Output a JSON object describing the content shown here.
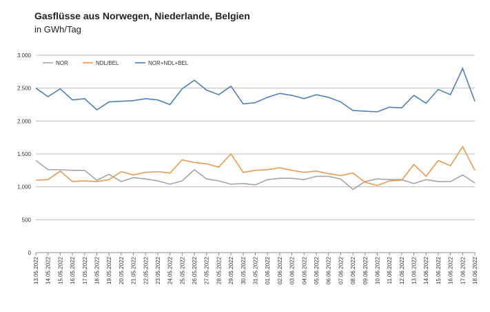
{
  "chart_data": {
    "type": "line",
    "title": "Gasflüsse aus Norwegen, Niederlande, Belgien",
    "subtitle": "in GWh/Tag",
    "categories": [
      "13.05.2022",
      "14.05.2022",
      "15.05.2022",
      "16.05.2022",
      "17.05.2022",
      "18.05.2022",
      "19.05.2022",
      "20.05.2022",
      "21.05.2022",
      "22.05.2022",
      "23.05.2022",
      "24.05.2022",
      "25.05.2022",
      "26.05.2022",
      "27.05.2022",
      "28.05.2022",
      "29.05.2022",
      "30.05.2022",
      "31.05.2022",
      "01.06.2022",
      "02.06.2022",
      "03.06.2022",
      "04.06.2022",
      "05.06.2022",
      "06.06.2022",
      "07.06.2022",
      "08.06.2022",
      "09.06.2022",
      "10.06.2022",
      "11.06.2022",
      "12.06.2022",
      "13.06.2022",
      "14.06.2022",
      "15.06.2022",
      "16.06.2022",
      "17.06.2022",
      "18.06.2022"
    ],
    "series": [
      {
        "name": "NOR",
        "color": "#a5a5a5",
        "values": [
          1400,
          1260,
          1260,
          1250,
          1250,
          1100,
          1190,
          1080,
          1140,
          1120,
          1090,
          1040,
          1090,
          1260,
          1120,
          1090,
          1040,
          1050,
          1030,
          1110,
          1130,
          1130,
          1110,
          1160,
          1160,
          1120,
          960,
          1080,
          1120,
          1110,
          1110,
          1050,
          1110,
          1080,
          1080,
          1180,
          1060
        ]
      },
      {
        "name": "NDL/BEL",
        "color": "#ed9a4e",
        "values": [
          1100,
          1110,
          1240,
          1080,
          1090,
          1080,
          1110,
          1230,
          1180,
          1220,
          1230,
          1210,
          1410,
          1370,
          1350,
          1300,
          1500,
          1220,
          1250,
          1260,
          1290,
          1250,
          1220,
          1240,
          1200,
          1170,
          1210,
          1070,
          1020,
          1090,
          1100,
          1340,
          1160,
          1400,
          1320,
          1610,
          1250
        ]
      },
      {
        "name": "NOR+NDL+BEL",
        "color": "#4e7fb5",
        "values": [
          2500,
          2370,
          2490,
          2320,
          2340,
          2170,
          2290,
          2300,
          2310,
          2340,
          2320,
          2250,
          2490,
          2620,
          2470,
          2400,
          2530,
          2260,
          2280,
          2360,
          2420,
          2390,
          2340,
          2400,
          2360,
          2290,
          2160,
          2150,
          2140,
          2210,
          2200,
          2390,
          2270,
          2480,
          2400,
          2800,
          2300
        ]
      }
    ],
    "ylim": [
      0,
      3000
    ],
    "yticks": [
      0,
      500,
      {
        "value": 1000,
        "label": "1.000"
      },
      {
        "value": 1500,
        "label": "1.500"
      },
      {
        "value": 2000,
        "label": "2.000"
      },
      {
        "value": 2500,
        "label": "2.500"
      },
      {
        "value": 3000,
        "label": "3.000"
      }
    ],
    "grid": true,
    "legend": "top"
  }
}
